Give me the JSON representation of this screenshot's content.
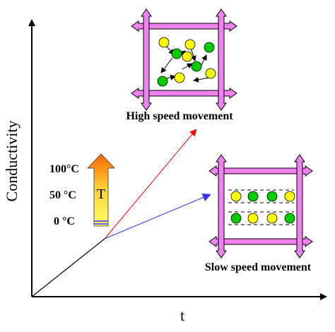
{
  "axes": {
    "y_label": "Conductivity",
    "x_label": "t"
  },
  "temperature_scale": {
    "labels": [
      "100°C",
      "50 °C",
      "0 °C"
    ],
    "arrow_symbol": "T"
  },
  "panels": {
    "high": {
      "caption": "High speed movement"
    },
    "slow": {
      "caption": "Slow speed movement"
    }
  },
  "colors": {
    "frame_fill": "#ee82ee",
    "particle_yellow": "#ffff00",
    "particle_green": "#00cc00",
    "red_arrow": "#ff0000",
    "blue_arrow": "#3333ff",
    "gradient_top": "#ff6600",
    "gradient_bottom": "#ffff66"
  },
  "icons": {
    "temperature_arrow": "temperature-up-arrow-icon",
    "frame_arrow": "double-headed-arrow-icon"
  }
}
